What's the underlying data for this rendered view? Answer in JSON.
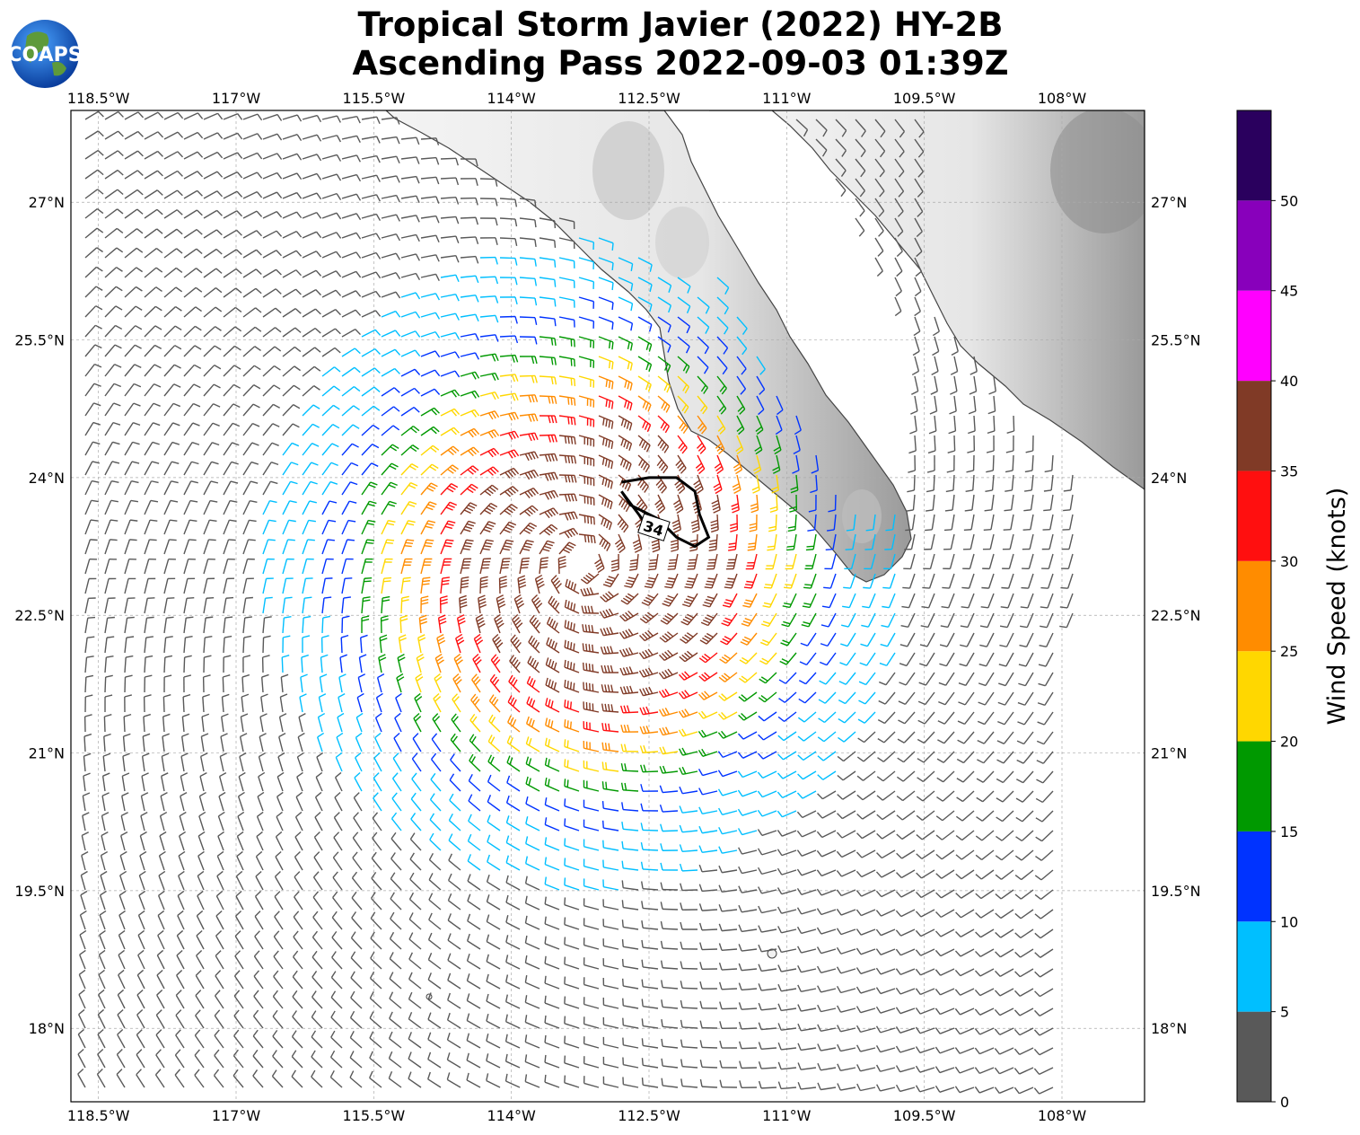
{
  "title": {
    "line1": "Tropical Storm Javier (2022) HY-2B",
    "line2": "Ascending Pass 2022-09-03 01:39Z"
  },
  "logo": {
    "text": "COAPS"
  },
  "map": {
    "lon_range": [
      -118.8,
      -107.1
    ],
    "lat_range": [
      17.2,
      28.0
    ],
    "lon_ticks": [
      {
        "value": -118.5,
        "label": "118.5°W"
      },
      {
        "value": -117.0,
        "label": "117°W"
      },
      {
        "value": -115.5,
        "label": "115.5°W"
      },
      {
        "value": -114.0,
        "label": "114°W"
      },
      {
        "value": -112.5,
        "label": "112.5°W"
      },
      {
        "value": -111.0,
        "label": "111°W"
      },
      {
        "value": -109.5,
        "label": "109.5°W"
      },
      {
        "value": -108.0,
        "label": "108°W"
      }
    ],
    "lat_ticks": [
      {
        "value": 27.0,
        "label": "27°N"
      },
      {
        "value": 25.5,
        "label": "25.5°N"
      },
      {
        "value": 24.0,
        "label": "24°N"
      },
      {
        "value": 22.5,
        "label": "22.5°N"
      },
      {
        "value": 21.0,
        "label": "21°N"
      },
      {
        "value": 19.5,
        "label": "19.5°N"
      },
      {
        "value": 18.0,
        "label": "18°N"
      }
    ],
    "storm_center": {
      "lon": -113.2,
      "lat": 23.05
    },
    "wind_contour": {
      "label": "34",
      "points": [
        [
          -112.8,
          23.95
        ],
        [
          -112.5,
          24.0
        ],
        [
          -112.2,
          24.0
        ],
        [
          -112.0,
          23.85
        ],
        [
          -111.95,
          23.6
        ],
        [
          -111.85,
          23.35
        ],
        [
          -112.0,
          23.25
        ],
        [
          -112.2,
          23.35
        ],
        [
          -112.4,
          23.55
        ],
        [
          -112.7,
          23.7
        ],
        [
          -112.8,
          23.85
        ],
        [
          -112.5,
          23.45
        ]
      ]
    }
  },
  "colorbar": {
    "label": "Wind Speed (knots)",
    "ticks": [
      "0",
      "5",
      "10",
      "15",
      "20",
      "25",
      "30",
      "35",
      "40",
      "45",
      "50"
    ],
    "bins": [
      {
        "min": 0,
        "max": 5,
        "color": "#595959"
      },
      {
        "min": 5,
        "max": 10,
        "color": "#00bfff"
      },
      {
        "min": 10,
        "max": 15,
        "color": "#0033ff"
      },
      {
        "min": 15,
        "max": 20,
        "color": "#009900"
      },
      {
        "min": 20,
        "max": 25,
        "color": "#ffd700"
      },
      {
        "min": 25,
        "max": 30,
        "color": "#ff8c00"
      },
      {
        "min": 30,
        "max": 35,
        "color": "#ff0f0f"
      },
      {
        "min": 35,
        "max": 40,
        "color": "#803a26"
      },
      {
        "min": 40,
        "max": 45,
        "color": "#ff00ff"
      },
      {
        "min": 45,
        "max": 50,
        "color": "#8800bb"
      },
      {
        "min": 50,
        "max": 55,
        "color": "#2a005e"
      }
    ]
  }
}
